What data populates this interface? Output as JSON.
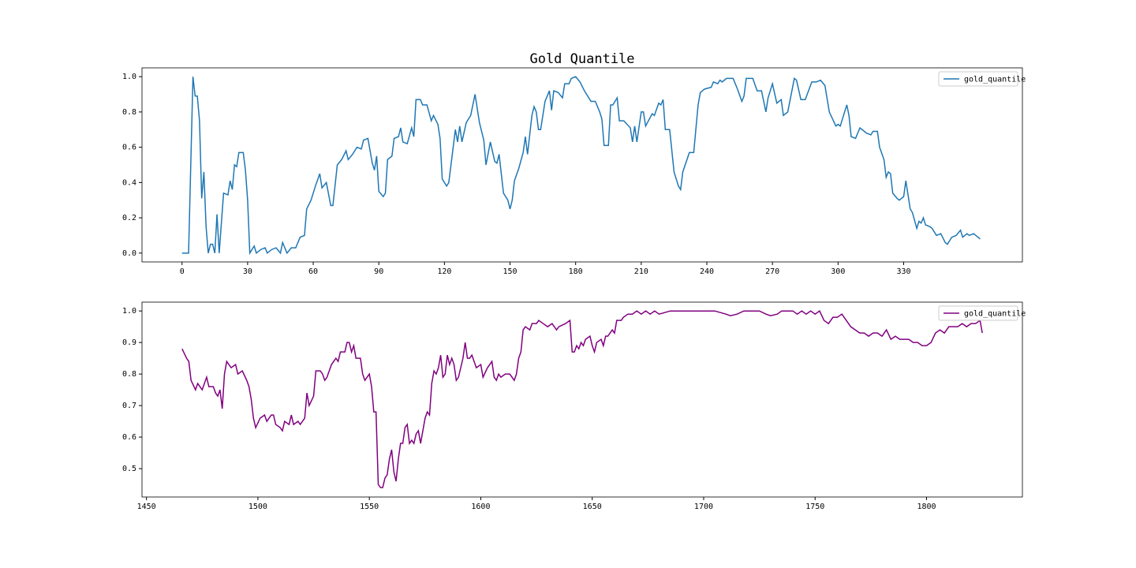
{
  "chart_data": [
    {
      "type": "line",
      "title": "Gold Quantile",
      "legend": "upper right",
      "xlim": [
        -18.3,
        384.3
      ],
      "ylim": [
        -0.05,
        1.05
      ],
      "xticks": [
        0,
        30,
        60,
        90,
        120,
        150,
        180,
        210,
        240,
        270,
        300,
        330
      ],
      "yticks": [
        {
          "value": 0,
          "label": "0.0"
        },
        0.2,
        0.4,
        0.6,
        0.8,
        {
          "value": 1,
          "label": "1.0"
        }
      ],
      "x": [
        0,
        3,
        5,
        6,
        7,
        8,
        9,
        10,
        11,
        12,
        13,
        14,
        15,
        16,
        17,
        19,
        21,
        22,
        23,
        24,
        25,
        26,
        28,
        29,
        30,
        31,
        33,
        34,
        36,
        38,
        39,
        41,
        43,
        45,
        46,
        48,
        50,
        52,
        54,
        56,
        57,
        59,
        61,
        63,
        64,
        66,
        68,
        69,
        71,
        73,
        75,
        76,
        78,
        80,
        82,
        83,
        85,
        87,
        88,
        89,
        90,
        92,
        93,
        94,
        96,
        97,
        99,
        100,
        101,
        103,
        105,
        106,
        107,
        109,
        110,
        112,
        114,
        115,
        117,
        118,
        119,
        121,
        122,
        123,
        125,
        126,
        127,
        128,
        130,
        132,
        133,
        134,
        136,
        138,
        139,
        141,
        143,
        144,
        145,
        147,
        149,
        150,
        151,
        152,
        154,
        156,
        157,
        158,
        160,
        161,
        162,
        163,
        164,
        166,
        168,
        169,
        170,
        172,
        174,
        175,
        177,
        178,
        180,
        182,
        184,
        187,
        189,
        191,
        192,
        193,
        195,
        196,
        197,
        198,
        199,
        200,
        202,
        205,
        206,
        207,
        208,
        210,
        211,
        212,
        215,
        216,
        218,
        219,
        220,
        221,
        223,
        225,
        227,
        228,
        229,
        232,
        234,
        236,
        237,
        239,
        242,
        243,
        245,
        246,
        247,
        249,
        252,
        254,
        256,
        257,
        258,
        261,
        263,
        265,
        267,
        268,
        270,
        272,
        274,
        275,
        277,
        280,
        281,
        283,
        285,
        288,
        290,
        292,
        294,
        296,
        299,
        300,
        301,
        304,
        305,
        306,
        308,
        310,
        311,
        313,
        315,
        316,
        318,
        319,
        321,
        322,
        323,
        324,
        325,
        327,
        328,
        330,
        331,
        333,
        334,
        336,
        337,
        338,
        339,
        340,
        342,
        343,
        345,
        347,
        349,
        350,
        352,
        354,
        356,
        357,
        359,
        360,
        362,
        364,
        365
      ],
      "series": [
        {
          "name": "gold_quantile",
          "color": "#1f77b4",
          "values": [
            0,
            0,
            1.0,
            0.89,
            0.89,
            0.75,
            0.31,
            0.46,
            0.15,
            0,
            0.05,
            0.05,
            0,
            0.22,
            0,
            0.34,
            0.33,
            0.41,
            0.36,
            0.5,
            0.49,
            0.57,
            0.57,
            0.47,
            0.3,
            0,
            0.04,
            0,
            0.02,
            0.03,
            0,
            0.02,
            0.03,
            0,
            0.06,
            0,
            0.03,
            0.03,
            0.09,
            0.1,
            0.25,
            0.3,
            0.38,
            0.45,
            0.37,
            0.4,
            0.27,
            0.27,
            0.5,
            0.53,
            0.58,
            0.53,
            0.56,
            0.6,
            0.59,
            0.64,
            0.65,
            0.51,
            0.47,
            0.55,
            0.35,
            0.32,
            0.34,
            0.53,
            0.55,
            0.65,
            0.66,
            0.71,
            0.63,
            0.62,
            0.71,
            0.66,
            0.87,
            0.87,
            0.84,
            0.84,
            0.75,
            0.78,
            0.73,
            0.65,
            0.42,
            0.38,
            0.4,
            0.5,
            0.7,
            0.63,
            0.72,
            0.63,
            0.74,
            0.78,
            0.84,
            0.9,
            0.74,
            0.64,
            0.5,
            0.63,
            0.52,
            0.51,
            0.56,
            0.34,
            0.3,
            0.25,
            0.3,
            0.41,
            0.48,
            0.57,
            0.66,
            0.56,
            0.78,
            0.83,
            0.8,
            0.7,
            0.7,
            0.86,
            0.92,
            0.81,
            0.92,
            0.91,
            0.88,
            0.96,
            0.96,
            0.99,
            1.0,
            0.97,
            0.92,
            0.86,
            0.86,
            0.8,
            0.76,
            0.61,
            0.61,
            0.84,
            0.84,
            0.86,
            0.88,
            0.75,
            0.75,
            0.71,
            0.63,
            0.72,
            0.63,
            0.8,
            0.8,
            0.72,
            0.79,
            0.78,
            0.85,
            0.84,
            0.87,
            0.7,
            0.7,
            0.46,
            0.38,
            0.36,
            0.46,
            0.57,
            0.57,
            0.84,
            0.91,
            0.93,
            0.94,
            0.97,
            0.96,
            0.98,
            0.97,
            0.99,
            0.99,
            0.93,
            0.86,
            0.89,
            0.99,
            0.99,
            0.92,
            0.92,
            0.8,
            0.88,
            0.96,
            0.85,
            0.87,
            0.78,
            0.8,
            0.99,
            0.98,
            0.87,
            0.87,
            0.97,
            0.97,
            0.98,
            0.95,
            0.8,
            0.72,
            0.73,
            0.72,
            0.84,
            0.78,
            0.66,
            0.65,
            0.71,
            0.7,
            0.68,
            0.67,
            0.69,
            0.69,
            0.6,
            0.53,
            0.43,
            0.46,
            0.45,
            0.34,
            0.31,
            0.3,
            0.32,
            0.41,
            0.25,
            0.23,
            0.14,
            0.18,
            0.17,
            0.2,
            0.16,
            0.15,
            0.14,
            0.1,
            0.11,
            0.06,
            0.05,
            0.09,
            0.1,
            0.13,
            0.09,
            0.11,
            0.1,
            0.11,
            0.09,
            0.08
          ]
        }
      ]
    },
    {
      "type": "line",
      "legend": "upper right",
      "xlim": [
        1448,
        1843
      ],
      "ylim": [
        0.41,
        1.028
      ],
      "xticks": [
        1450,
        1500,
        1550,
        1600,
        1650,
        1700,
        1750,
        1800
      ],
      "yticks": [
        0.5,
        0.6,
        0.7,
        0.8,
        0.9,
        {
          "value": 1,
          "label": "1.0"
        }
      ],
      "x": [
        1466,
        1468,
        1469,
        1470,
        1472,
        1473,
        1475,
        1477,
        1478,
        1480,
        1481,
        1482,
        1483,
        1484,
        1485,
        1486,
        1488,
        1490,
        1491,
        1493,
        1495,
        1496,
        1497,
        1498,
        1499,
        1501,
        1503,
        1504,
        1506,
        1507,
        1508,
        1510,
        1511,
        1512,
        1514,
        1515,
        1516,
        1518,
        1519,
        1521,
        1522,
        1523,
        1525,
        1526,
        1528,
        1529,
        1530,
        1531,
        1533,
        1535,
        1536,
        1537,
        1539,
        1540,
        1541,
        1542,
        1543,
        1544,
        1546,
        1547,
        1548,
        1549,
        1550,
        1551,
        1552,
        1553,
        1554,
        1555,
        1556,
        1557,
        1558,
        1559,
        1560,
        1561,
        1562,
        1563,
        1564,
        1565,
        1566,
        1567,
        1568,
        1569,
        1570,
        1571,
        1572,
        1573,
        1574,
        1575,
        1576,
        1577,
        1578,
        1579,
        1580,
        1581,
        1582,
        1583,
        1584,
        1585,
        1586,
        1587,
        1588,
        1589,
        1590,
        1592,
        1593,
        1594,
        1595,
        1596,
        1598,
        1600,
        1601,
        1603,
        1605,
        1606,
        1607,
        1608,
        1609,
        1611,
        1613,
        1615,
        1616,
        1617,
        1618,
        1619,
        1620,
        1622,
        1623,
        1625,
        1626,
        1628,
        1630,
        1632,
        1634,
        1635,
        1638,
        1640,
        1641,
        1642,
        1643,
        1644,
        1645,
        1646,
        1647,
        1649,
        1650,
        1651,
        1652,
        1654,
        1655,
        1656,
        1657,
        1659,
        1660,
        1661,
        1663,
        1664,
        1666,
        1668,
        1670,
        1672,
        1674,
        1676,
        1678,
        1680,
        1685,
        1690,
        1700,
        1705,
        1710,
        1712,
        1715,
        1718,
        1725,
        1728,
        1730,
        1733,
        1735,
        1740,
        1742,
        1744,
        1746,
        1748,
        1750,
        1752,
        1754,
        1756,
        1758,
        1760,
        1762,
        1764,
        1766,
        1768,
        1770,
        1772,
        1774,
        1776,
        1778,
        1780,
        1782,
        1784,
        1786,
        1788,
        1790,
        1792,
        1794,
        1796,
        1798,
        1800,
        1802,
        1804,
        1806,
        1808,
        1810,
        1812,
        1814,
        1816,
        1818,
        1820,
        1822,
        1824,
        1825
      ],
      "series": [
        {
          "name": "gold_quantile",
          "color": "#800080",
          "values": [
            0.88,
            0.85,
            0.84,
            0.78,
            0.75,
            0.77,
            0.75,
            0.79,
            0.76,
            0.76,
            0.74,
            0.73,
            0.75,
            0.69,
            0.8,
            0.84,
            0.82,
            0.83,
            0.8,
            0.81,
            0.78,
            0.76,
            0.72,
            0.66,
            0.63,
            0.66,
            0.67,
            0.65,
            0.67,
            0.67,
            0.64,
            0.63,
            0.62,
            0.65,
            0.64,
            0.67,
            0.64,
            0.65,
            0.64,
            0.66,
            0.74,
            0.7,
            0.73,
            0.81,
            0.81,
            0.8,
            0.78,
            0.79,
            0.83,
            0.85,
            0.84,
            0.87,
            0.87,
            0.9,
            0.9,
            0.87,
            0.89,
            0.85,
            0.85,
            0.8,
            0.78,
            0.79,
            0.8,
            0.76,
            0.68,
            0.68,
            0.45,
            0.44,
            0.44,
            0.47,
            0.48,
            0.53,
            0.56,
            0.49,
            0.46,
            0.53,
            0.58,
            0.58,
            0.63,
            0.64,
            0.58,
            0.59,
            0.58,
            0.61,
            0.62,
            0.58,
            0.62,
            0.66,
            0.68,
            0.67,
            0.77,
            0.81,
            0.8,
            0.82,
            0.86,
            0.79,
            0.8,
            0.86,
            0.83,
            0.85,
            0.83,
            0.78,
            0.79,
            0.85,
            0.9,
            0.85,
            0.85,
            0.86,
            0.82,
            0.83,
            0.79,
            0.82,
            0.84,
            0.79,
            0.78,
            0.8,
            0.79,
            0.8,
            0.8,
            0.78,
            0.8,
            0.85,
            0.87,
            0.94,
            0.95,
            0.94,
            0.96,
            0.96,
            0.97,
            0.96,
            0.95,
            0.96,
            0.94,
            0.95,
            0.96,
            0.97,
            0.87,
            0.87,
            0.89,
            0.88,
            0.9,
            0.89,
            0.91,
            0.92,
            0.89,
            0.87,
            0.9,
            0.91,
            0.89,
            0.92,
            0.92,
            0.94,
            0.93,
            0.97,
            0.97,
            0.98,
            0.99,
            0.99,
            1.0,
            0.99,
            1.0,
            0.99,
            1.0,
            0.99,
            1.0,
            1.0,
            1.0,
            1.0,
            0.99,
            0.985,
            0.99,
            1.0,
            1.0,
            0.99,
            0.985,
            0.99,
            1.0,
            1.0,
            0.99,
            1.0,
            0.99,
            1.0,
            0.99,
            1.0,
            0.97,
            0.96,
            0.98,
            0.98,
            0.99,
            0.97,
            0.95,
            0.94,
            0.93,
            0.93,
            0.92,
            0.93,
            0.93,
            0.92,
            0.94,
            0.91,
            0.92,
            0.91,
            0.91,
            0.91,
            0.9,
            0.9,
            0.89,
            0.89,
            0.9,
            0.93,
            0.94,
            0.93,
            0.95,
            0.95,
            0.95,
            0.96,
            0.95,
            0.96,
            0.96,
            0.97,
            0.93
          ]
        }
      ]
    }
  ]
}
